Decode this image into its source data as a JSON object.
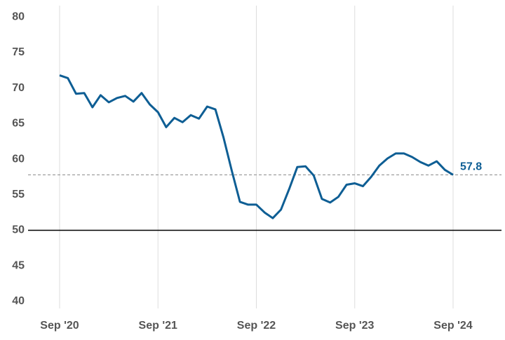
{
  "chart_data": {
    "type": "line",
    "categories": [
      "Sep '20",
      null,
      null,
      null,
      null,
      null,
      null,
      null,
      null,
      null,
      null,
      null,
      "Sep '21",
      null,
      null,
      null,
      null,
      null,
      null,
      null,
      null,
      null,
      null,
      null,
      "Sep '22",
      null,
      null,
      null,
      null,
      null,
      null,
      null,
      null,
      null,
      null,
      null,
      "Sep '23",
      null,
      null,
      null,
      null,
      null,
      null,
      null,
      null,
      null,
      null,
      null,
      "Sep '24"
    ],
    "series": [
      {
        "color": "#0e5e94",
        "values": [
          71.8,
          71.4,
          69.2,
          69.3,
          67.3,
          69.0,
          68.0,
          68.6,
          68.9,
          68.1,
          69.3,
          67.7,
          66.6,
          64.5,
          65.8,
          65.2,
          66.2,
          65.7,
          67.4,
          67.0,
          63.0,
          58.4,
          54.0,
          53.6,
          53.6,
          52.5,
          51.7,
          52.9,
          55.8,
          58.9,
          59.0,
          57.7,
          54.4,
          53.9,
          54.7,
          56.4,
          56.6,
          56.2,
          57.5,
          59.1,
          60.1,
          60.8,
          60.8,
          60.3,
          59.6,
          59.1,
          59.7,
          58.5,
          57.8
        ]
      }
    ],
    "reference_line": 57.8,
    "baseline": 50,
    "ylim": [
      39,
      81.6
    ],
    "yticks": [
      40,
      45,
      50,
      55,
      60,
      65,
      70,
      75,
      80
    ],
    "grid": true
  }
}
